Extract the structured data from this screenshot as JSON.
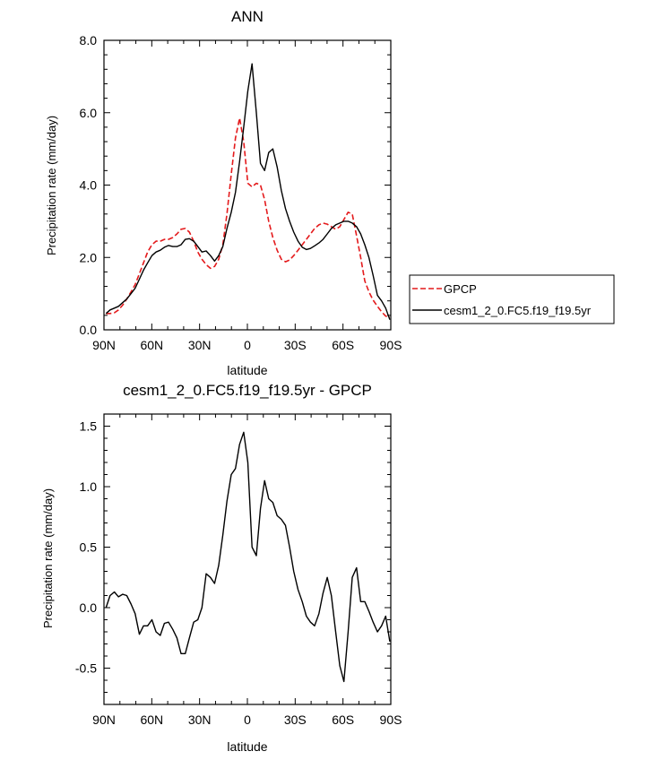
{
  "chart_data": [
    {
      "type": "line",
      "title": "ANN",
      "xlabel": "latitude",
      "ylabel": "Precipitation rate (mm/day)",
      "xlim": [
        90,
        -90
      ],
      "ylim": [
        0,
        8
      ],
      "x_ticks": [
        90,
        60,
        30,
        0,
        -30,
        -60,
        -90
      ],
      "x_tick_labels": [
        "90N",
        "60N",
        "30N",
        "0",
        "30S",
        "60S",
        "90S"
      ],
      "y_ticks": [
        0,
        2,
        4,
        6,
        8
      ],
      "y_tick_labels": [
        "0.0",
        "2.0",
        "4.0",
        "6.0",
        "8.0"
      ],
      "legend": {
        "placement": "right"
      },
      "x": [
        88.7,
        86.2,
        83.5,
        80.9,
        78.3,
        75.7,
        73.0,
        70.4,
        67.8,
        65.2,
        62.6,
        59.9,
        57.3,
        54.7,
        52.1,
        49.5,
        46.8,
        44.2,
        41.6,
        39.0,
        36.4,
        33.7,
        31.1,
        28.5,
        25.9,
        23.2,
        20.6,
        18.0,
        15.4,
        12.8,
        10.1,
        7.5,
        4.9,
        2.3,
        -0.3,
        -2.9,
        -5.6,
        -8.2,
        -10.8,
        -13.4,
        -16.0,
        -18.7,
        -21.3,
        -23.9,
        -26.5,
        -29.1,
        -31.8,
        -34.4,
        -37.0,
        -39.6,
        -42.2,
        -44.9,
        -47.5,
        -50.1,
        -52.7,
        -55.4,
        -58.0,
        -60.6,
        -63.2,
        -65.8,
        -68.5,
        -71.1,
        -73.7,
        -76.3,
        -78.9,
        -81.6,
        -84.2,
        -86.8,
        -89.4
      ],
      "series": [
        {
          "name": "GPCP",
          "color": "#e41a1c",
          "dash": "dashed",
          "values": [
            0.45,
            0.45,
            0.47,
            0.55,
            0.68,
            0.85,
            1.05,
            1.25,
            1.55,
            1.85,
            2.15,
            2.35,
            2.45,
            2.45,
            2.5,
            2.5,
            2.55,
            2.65,
            2.78,
            2.8,
            2.7,
            2.45,
            2.15,
            1.95,
            1.8,
            1.7,
            1.75,
            1.95,
            2.35,
            3.2,
            4.3,
            5.3,
            5.85,
            5.2,
            4.05,
            3.95,
            4.05,
            4.0,
            3.6,
            3.0,
            2.55,
            2.2,
            1.95,
            1.88,
            1.93,
            2.05,
            2.2,
            2.35,
            2.5,
            2.65,
            2.8,
            2.9,
            2.95,
            2.92,
            2.85,
            2.78,
            2.85,
            3.05,
            3.25,
            3.2,
            2.6,
            2.0,
            1.35,
            1.05,
            0.82,
            0.65,
            0.5,
            0.38,
            0.35
          ]
        },
        {
          "name": "cesm1_2_0.FC5.f19_f19.5yr",
          "color": "#000000",
          "dash": "solid",
          "values": [
            0.45,
            0.55,
            0.6,
            0.65,
            0.75,
            0.85,
            1.0,
            1.15,
            1.4,
            1.65,
            1.85,
            2.05,
            2.15,
            2.2,
            2.28,
            2.33,
            2.3,
            2.3,
            2.35,
            2.5,
            2.52,
            2.45,
            2.3,
            2.15,
            2.18,
            2.05,
            1.9,
            2.05,
            2.3,
            2.8,
            3.25,
            3.8,
            4.65,
            5.6,
            6.6,
            7.35,
            6.0,
            4.6,
            4.4,
            4.9,
            5.0,
            4.5,
            3.85,
            3.35,
            3.0,
            2.7,
            2.45,
            2.28,
            2.22,
            2.25,
            2.32,
            2.4,
            2.5,
            2.65,
            2.8,
            2.9,
            2.95,
            3.0,
            3.0,
            2.95,
            2.85,
            2.65,
            2.35,
            2.0,
            1.5,
            0.95,
            0.8,
            0.6,
            0.28
          ]
        }
      ]
    },
    {
      "type": "line",
      "title": "cesm1_2_0.FC5.f19_f19.5yr - GPCP",
      "xlabel": "latitude",
      "ylabel": "Precipitation rate (mm/day)",
      "xlim": [
        90,
        -90
      ],
      "ylim": [
        -0.8,
        1.6
      ],
      "x_ticks": [
        90,
        60,
        30,
        0,
        -30,
        -60,
        -90
      ],
      "x_tick_labels": [
        "90N",
        "60N",
        "30N",
        "0",
        "30S",
        "60S",
        "90S"
      ],
      "y_ticks": [
        -0.5,
        0,
        0.5,
        1.0,
        1.5
      ],
      "y_tick_labels": [
        "-0.5",
        "0.0",
        "0.5",
        "1.0",
        "1.5"
      ],
      "x": [
        88.7,
        86.2,
        83.5,
        80.9,
        78.3,
        75.7,
        73.0,
        70.4,
        67.8,
        65.2,
        62.6,
        59.9,
        57.3,
        54.7,
        52.1,
        49.5,
        46.8,
        44.2,
        41.6,
        39.0,
        36.4,
        33.7,
        31.1,
        28.5,
        25.9,
        23.2,
        20.6,
        18.0,
        15.4,
        12.8,
        10.1,
        7.5,
        4.9,
        2.3,
        -0.3,
        -2.9,
        -5.6,
        -8.2,
        -10.8,
        -13.4,
        -16.0,
        -18.7,
        -21.3,
        -23.9,
        -26.5,
        -29.1,
        -31.8,
        -34.4,
        -37.0,
        -39.6,
        -42.2,
        -44.9,
        -47.5,
        -50.1,
        -52.7,
        -55.4,
        -58.0,
        -60.6,
        -63.2,
        -65.8,
        -68.5,
        -71.1,
        -73.7,
        -76.3,
        -78.9,
        -81.6,
        -84.2,
        -86.8,
        -89.4
      ],
      "series": [
        {
          "color": "#000000",
          "values": [
            0.0,
            0.1,
            0.13,
            0.09,
            0.11,
            0.1,
            0.03,
            -0.05,
            -0.22,
            -0.15,
            -0.15,
            -0.1,
            -0.2,
            -0.23,
            -0.13,
            -0.12,
            -0.18,
            -0.25,
            -0.38,
            -0.38,
            -0.25,
            -0.12,
            -0.1,
            0.0,
            0.28,
            0.25,
            0.2,
            0.35,
            0.6,
            0.88,
            1.1,
            1.15,
            1.35,
            1.45,
            1.2,
            0.5,
            0.43,
            0.82,
            1.05,
            0.9,
            0.87,
            0.76,
            0.73,
            0.68,
            0.5,
            0.3,
            0.15,
            0.05,
            -0.07,
            -0.12,
            -0.15,
            -0.05,
            0.12,
            0.25,
            0.1,
            -0.2,
            -0.48,
            -0.61,
            -0.2,
            0.25,
            0.33,
            0.05,
            0.05,
            -0.03,
            -0.12,
            -0.2,
            -0.15,
            -0.07,
            -0.28
          ]
        }
      ]
    }
  ]
}
